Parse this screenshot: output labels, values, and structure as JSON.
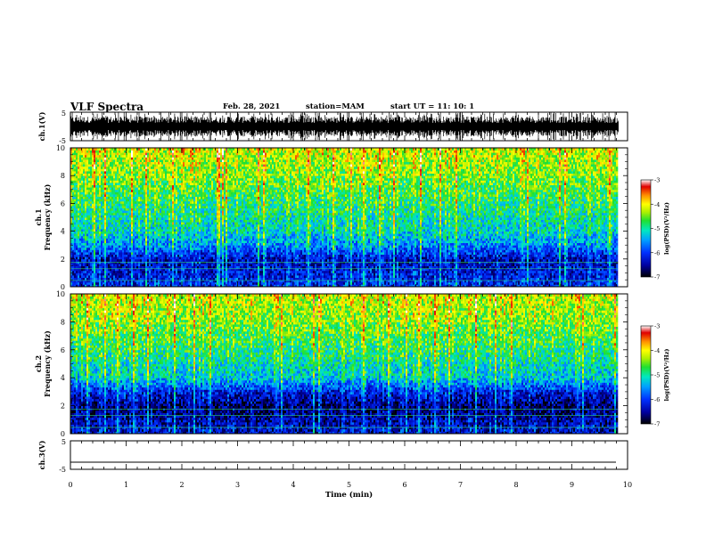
{
  "header": {
    "title": "VLF Spectra",
    "date": "Feb. 28, 2021",
    "station": "station=MAM",
    "start": "start  UT  =   11: 10: 1"
  },
  "chart_data": [
    {
      "type": "line",
      "panel": "ch1-waveform",
      "ylabel": "ch.1(V)",
      "ylim": [
        -5,
        5
      ],
      "yticks": [
        "5",
        "-5"
      ],
      "xlim": [
        0,
        10
      ],
      "description_of_marks": "dense burst waveform spanning the full amplitude range"
    },
    {
      "type": "heatmap",
      "panel": "ch1-spectrogram",
      "ylabel_line1": "ch.1",
      "ylabel_line2": "Frequency (kHz)",
      "yticks": [
        "0",
        "2",
        "4",
        "6",
        "8",
        "10"
      ],
      "ylim": [
        0,
        10
      ],
      "xlim": [
        0,
        10
      ],
      "data_extent_min": 9.82,
      "colorbar": {
        "label": "log(PSD)(V²/Hz)",
        "ticks": [
          "-3",
          "-4",
          "-5",
          "-6",
          "-7"
        ],
        "range": [
          -7,
          -3
        ]
      },
      "mean_log_psd_profile": [
        {
          "freq_khz": 0,
          "log_psd": -6.1
        },
        {
          "freq_khz": 2,
          "log_psd": -6.4
        },
        {
          "freq_khz": 3,
          "log_psd": -5.6
        },
        {
          "freq_khz": 4,
          "log_psd": -5.2
        },
        {
          "freq_khz": 6,
          "log_psd": -4.9
        },
        {
          "freq_khz": 8,
          "log_psd": -4.5
        },
        {
          "freq_khz": 10,
          "log_psd": -4.2
        }
      ]
    },
    {
      "type": "heatmap",
      "panel": "ch2-spectrogram",
      "ylabel_line1": "ch.2",
      "ylabel_line2": "Frequency (kHz)",
      "yticks": [
        "0",
        "2",
        "4",
        "6",
        "8",
        "10"
      ],
      "ylim": [
        0,
        10
      ],
      "xlim": [
        0,
        10
      ],
      "data_extent_min": 9.82,
      "colorbar": {
        "label": "log(PSD)(V²/Hz)",
        "ticks": [
          "-3",
          "-4",
          "-5",
          "-6",
          "-7"
        ],
        "range": [
          -7,
          -3
        ]
      },
      "mean_log_psd_profile": [
        {
          "freq_khz": 0,
          "log_psd": -6.3
        },
        {
          "freq_khz": 2,
          "log_psd": -6.7
        },
        {
          "freq_khz": 3,
          "log_psd": -6.2
        },
        {
          "freq_khz": 4,
          "log_psd": -5.3
        },
        {
          "freq_khz": 6,
          "log_psd": -4.9
        },
        {
          "freq_khz": 8,
          "log_psd": -4.5
        },
        {
          "freq_khz": 10,
          "log_psd": -4.2
        }
      ]
    },
    {
      "type": "line",
      "panel": "ch3-waveform",
      "ylabel": "ch.3(V)",
      "ylim": [
        -5,
        5
      ],
      "yticks": [
        "5",
        "-5"
      ],
      "xlim": [
        0,
        10
      ],
      "level_v": -2.5
    }
  ],
  "xaxis": {
    "label": "Time (min)",
    "ticks": [
      "0",
      "1",
      "2",
      "3",
      "4",
      "5",
      "6",
      "7",
      "8",
      "9",
      "10"
    ]
  },
  "colors": {
    "ink": "#000000",
    "colormap": [
      "#000000",
      "#0000a0",
      "#0030ff",
      "#00a0ff",
      "#00e8c0",
      "#20e030",
      "#b0f000",
      "#ffff00",
      "#ff9000",
      "#e00000",
      "#ffffff"
    ]
  }
}
